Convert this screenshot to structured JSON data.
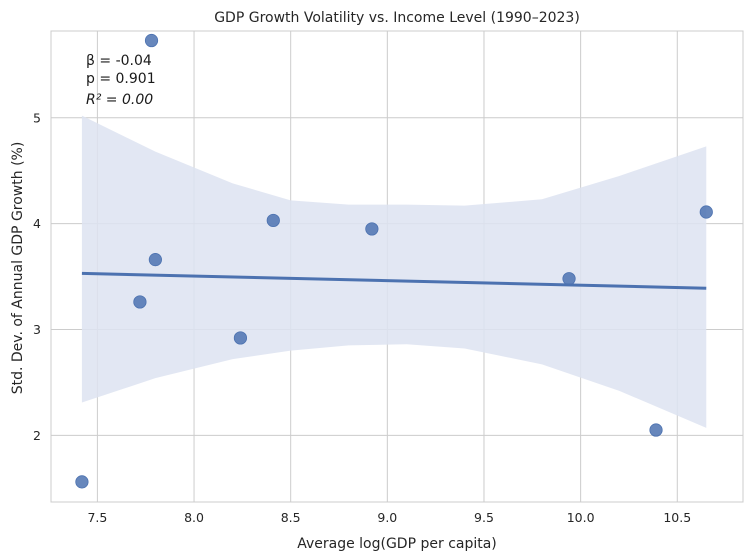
{
  "chart_data": {
    "type": "scatter",
    "title": "GDP Growth Volatility vs. Income Level (1990–2023)",
    "xlabel": "Average log(GDP per capita)",
    "ylabel": "Std. Dev. of Annual GDP Growth (%)",
    "xlim": [
      7.26,
      10.84
    ],
    "ylim": [
      1.37,
      5.82
    ],
    "xticks": [
      7.5,
      8.0,
      8.5,
      9.0,
      9.5,
      10.0,
      10.5
    ],
    "xtick_labels": [
      "7.5",
      "8.0",
      "8.5",
      "9.0",
      "9.5",
      "10.0",
      "10.5"
    ],
    "yticks": [
      2,
      3,
      4,
      5
    ],
    "ytick_labels": [
      "2",
      "3",
      "4",
      "5"
    ],
    "grid": true,
    "points": [
      {
        "x": 7.42,
        "y": 1.56
      },
      {
        "x": 7.72,
        "y": 3.26
      },
      {
        "x": 7.78,
        "y": 5.73
      },
      {
        "x": 7.8,
        "y": 3.66
      },
      {
        "x": 8.24,
        "y": 2.92
      },
      {
        "x": 8.41,
        "y": 4.03
      },
      {
        "x": 8.92,
        "y": 3.95
      },
      {
        "x": 9.94,
        "y": 3.48
      },
      {
        "x": 10.39,
        "y": 2.05
      },
      {
        "x": 10.65,
        "y": 4.11
      }
    ],
    "regression": {
      "x": [
        7.42,
        10.65
      ],
      "y": [
        3.53,
        3.39
      ],
      "ci_upper": [
        {
          "x": 7.42,
          "y": 5.02
        },
        {
          "x": 7.8,
          "y": 4.68
        },
        {
          "x": 8.2,
          "y": 4.38
        },
        {
          "x": 8.5,
          "y": 4.22
        },
        {
          "x": 8.8,
          "y": 4.18
        },
        {
          "x": 9.1,
          "y": 4.18
        },
        {
          "x": 9.4,
          "y": 4.17
        },
        {
          "x": 9.8,
          "y": 4.23
        },
        {
          "x": 10.2,
          "y": 4.45
        },
        {
          "x": 10.65,
          "y": 4.73
        }
      ],
      "ci_lower": [
        {
          "x": 7.42,
          "y": 2.31
        },
        {
          "x": 7.8,
          "y": 2.54
        },
        {
          "x": 8.2,
          "y": 2.72
        },
        {
          "x": 8.5,
          "y": 2.8
        },
        {
          "x": 8.8,
          "y": 2.85
        },
        {
          "x": 9.1,
          "y": 2.86
        },
        {
          "x": 9.4,
          "y": 2.82
        },
        {
          "x": 9.8,
          "y": 2.67
        },
        {
          "x": 10.2,
          "y": 2.42
        },
        {
          "x": 10.65,
          "y": 2.07
        }
      ]
    },
    "annotations": [
      "β = -0.04",
      "p = 0.901",
      "R² = 0.00"
    ],
    "colors": {
      "points": "#4c72b0",
      "line": "#4c72b0",
      "ci_band": "#dde3f1"
    }
  }
}
